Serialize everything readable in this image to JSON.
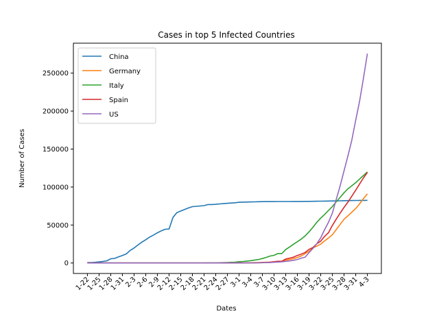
{
  "chart_data": {
    "type": "line",
    "title": "Cases in top 5 Infected Countries",
    "xlabel": "Dates",
    "ylabel": "Number of Cases",
    "ylim": [
      -13800,
      289400
    ],
    "y_ticks": [
      0,
      50000,
      100000,
      150000,
      200000,
      250000
    ],
    "x_tick_labels": [
      "1-22",
      "1-25",
      "1-28",
      "1-31",
      "2-3",
      "2-6",
      "2-9",
      "2-12",
      "2-15",
      "2-18",
      "2-21",
      "2-24",
      "2-27",
      "3-1",
      "3-4",
      "3-7",
      "3-10",
      "3-13",
      "3-16",
      "3-19",
      "3-22",
      "3-25",
      "3-28",
      "3-31",
      "4-3"
    ],
    "grid": false,
    "legend_position": "top-left",
    "x": [
      "1-22",
      "1-23",
      "1-24",
      "1-25",
      "1-26",
      "1-27",
      "1-28",
      "1-29",
      "1-30",
      "1-31",
      "2-1",
      "2-2",
      "2-3",
      "2-4",
      "2-5",
      "2-6",
      "2-7",
      "2-8",
      "2-9",
      "2-10",
      "2-11",
      "2-12",
      "2-13",
      "2-14",
      "2-15",
      "2-16",
      "2-17",
      "2-18",
      "2-19",
      "2-20",
      "2-21",
      "2-22",
      "2-23",
      "2-24",
      "2-25",
      "2-26",
      "2-27",
      "2-28",
      "2-29",
      "3-1",
      "3-2",
      "3-3",
      "3-4",
      "3-5",
      "3-6",
      "3-7",
      "3-8",
      "3-9",
      "3-10",
      "3-11",
      "3-12",
      "3-13",
      "3-14",
      "3-15",
      "3-16",
      "3-17",
      "3-18",
      "3-19",
      "3-20",
      "3-21",
      "3-22",
      "3-23",
      "3-24",
      "3-25",
      "3-26",
      "3-27",
      "3-28",
      "3-29",
      "3-30",
      "3-31",
      "4-1",
      "4-2",
      "4-3"
    ],
    "series": [
      {
        "name": "China",
        "color": "#1f77b4",
        "values": [
          548,
          643,
          920,
          1406,
          2075,
          2877,
          5509,
          6087,
          8141,
          9802,
          11891,
          16630,
          19716,
          23707,
          27440,
          30587,
          34110,
          36814,
          39829,
          42354,
          44386,
          44759,
          59895,
          66358,
          68413,
          70513,
          72434,
          74211,
          74619,
          75077,
          75550,
          77001,
          77022,
          77241,
          77754,
          78166,
          78600,
          78928,
          79356,
          79932,
          80136,
          80261,
          80386,
          80537,
          80690,
          80770,
          80823,
          80860,
          80887,
          80921,
          80932,
          80945,
          80977,
          81003,
          81033,
          81058,
          81102,
          81156,
          81250,
          81305,
          81435,
          81498,
          81591,
          81661,
          81782,
          81897,
          81999,
          82122,
          82198,
          82279,
          82361,
          82432,
          82511
        ]
      },
      {
        "name": "Germany",
        "color": "#ff7f0e",
        "values": [
          0,
          0,
          0,
          0,
          0,
          1,
          4,
          4,
          4,
          5,
          8,
          10,
          12,
          12,
          12,
          12,
          13,
          13,
          14,
          14,
          16,
          16,
          16,
          16,
          16,
          16,
          16,
          16,
          16,
          16,
          16,
          16,
          16,
          16,
          17,
          27,
          46,
          48,
          79,
          130,
          159,
          196,
          262,
          482,
          670,
          799,
          1040,
          1176,
          1457,
          1908,
          2078,
          3675,
          4585,
          5795,
          7272,
          9257,
          12327,
          15320,
          19848,
          22213,
          24873,
          29056,
          32986,
          37323,
          43938,
          50871,
          57695,
          62095,
          66885,
          71808,
          77872,
          84794,
          91159
        ]
      },
      {
        "name": "Italy",
        "color": "#2ca02c",
        "values": [
          0,
          0,
          0,
          0,
          0,
          0,
          0,
          0,
          0,
          2,
          2,
          2,
          2,
          2,
          2,
          2,
          3,
          3,
          3,
          3,
          3,
          3,
          3,
          3,
          3,
          3,
          3,
          3,
          3,
          3,
          20,
          62,
          155,
          229,
          322,
          453,
          655,
          888,
          1128,
          1694,
          2036,
          2502,
          3089,
          3858,
          4636,
          5883,
          7375,
          9172,
          10149,
          12462,
          12462,
          17660,
          21157,
          24747,
          27980,
          31506,
          35713,
          41035,
          47021,
          53578,
          59138,
          63927,
          69176,
          74386,
          80589,
          86498,
          92472,
          97689,
          101739,
          105792,
          110574,
          115242,
          119827
        ]
      },
      {
        "name": "Spain",
        "color": "#d62728",
        "values": [
          0,
          0,
          0,
          0,
          0,
          0,
          0,
          0,
          0,
          0,
          1,
          1,
          1,
          1,
          1,
          1,
          1,
          1,
          2,
          2,
          2,
          2,
          2,
          2,
          2,
          2,
          2,
          2,
          2,
          2,
          2,
          2,
          2,
          2,
          6,
          13,
          15,
          32,
          45,
          84,
          120,
          165,
          222,
          259,
          400,
          500,
          673,
          1073,
          1695,
          2277,
          2277,
          5232,
          6391,
          7798,
          9942,
          11748,
          13910,
          17963,
          20410,
          25374,
          28768,
          35136,
          39885,
          49515,
          57786,
          65719,
          73235,
          80110,
          87956,
          95923,
          104118,
          112065,
          119199
        ]
      },
      {
        "name": "US",
        "color": "#9467bd",
        "values": [
          1,
          1,
          2,
          2,
          5,
          5,
          5,
          5,
          5,
          7,
          8,
          8,
          11,
          11,
          11,
          11,
          11,
          11,
          11,
          11,
          12,
          12,
          13,
          13,
          13,
          13,
          13,
          13,
          13,
          13,
          15,
          15,
          15,
          51,
          51,
          57,
          58,
          60,
          68,
          74,
          98,
          118,
          149,
          217,
          262,
          402,
          518,
          583,
          959,
          1281,
          1663,
          2179,
          2727,
          3499,
          4632,
          6421,
          7786,
          13680,
          19101,
          25493,
          33276,
          43847,
          53740,
          65778,
          83836,
          101657,
          121478,
          140886,
          161807,
          188172,
          213372,
          243453,
          275586
        ]
      }
    ]
  }
}
